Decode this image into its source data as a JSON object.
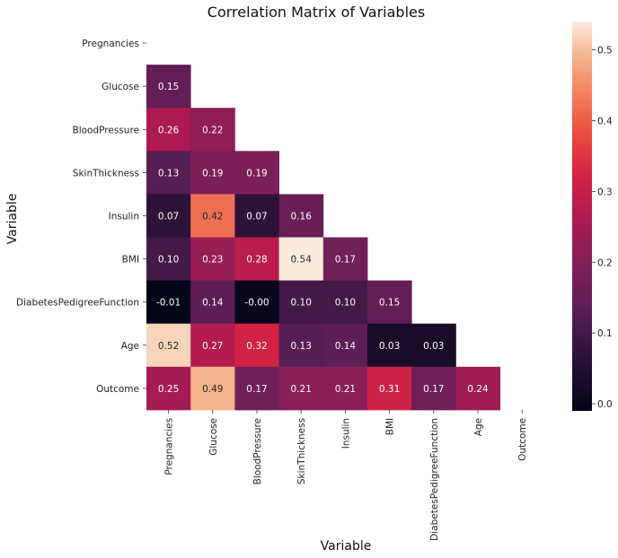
{
  "chart_data": {
    "type": "heatmap",
    "title": "Correlation Matrix of Variables",
    "xlabel": "Variable",
    "ylabel": "Variable",
    "variables": [
      "Pregnancies",
      "Glucose",
      "BloodPressure",
      "SkinThickness",
      "Insulin",
      "BMI",
      "DiabetesPedigreeFunction",
      "Age",
      "Outcome"
    ],
    "mask": "upper-triangle-including-diagonal",
    "values": [
      [
        null,
        null,
        null,
        null,
        null,
        null,
        null,
        null,
        null
      ],
      [
        0.15,
        null,
        null,
        null,
        null,
        null,
        null,
        null,
        null
      ],
      [
        0.26,
        0.22,
        null,
        null,
        null,
        null,
        null,
        null,
        null
      ],
      [
        0.13,
        0.19,
        0.19,
        null,
        null,
        null,
        null,
        null,
        null
      ],
      [
        0.07,
        0.42,
        0.07,
        0.16,
        null,
        null,
        null,
        null,
        null
      ],
      [
        0.1,
        0.23,
        0.28,
        0.54,
        0.17,
        null,
        null,
        null,
        null
      ],
      [
        -0.01,
        0.14,
        -0.0,
        0.1,
        0.1,
        0.15,
        null,
        null,
        null
      ],
      [
        0.52,
        0.27,
        0.32,
        0.13,
        0.14,
        0.03,
        0.03,
        null,
        null
      ],
      [
        0.25,
        0.49,
        0.17,
        0.21,
        0.21,
        0.31,
        0.17,
        0.24,
        null
      ]
    ],
    "labels": [
      [
        null,
        null,
        null,
        null,
        null,
        null,
        null,
        null,
        null
      ],
      [
        "0.15",
        null,
        null,
        null,
        null,
        null,
        null,
        null,
        null
      ],
      [
        "0.26",
        "0.22",
        null,
        null,
        null,
        null,
        null,
        null,
        null
      ],
      [
        "0.13",
        "0.19",
        "0.19",
        null,
        null,
        null,
        null,
        null,
        null
      ],
      [
        "0.07",
        "0.42",
        "0.07",
        "0.16",
        null,
        null,
        null,
        null,
        null
      ],
      [
        "0.10",
        "0.23",
        "0.28",
        "0.54",
        "0.17",
        null,
        null,
        null,
        null
      ],
      [
        "-0.01",
        "0.14",
        "-0.00",
        "0.10",
        "0.10",
        "0.15",
        null,
        null,
        null
      ],
      [
        "0.52",
        "0.27",
        "0.32",
        "0.13",
        "0.14",
        "0.03",
        "0.03",
        null,
        null
      ],
      [
        "0.25",
        "0.49",
        "0.17",
        "0.21",
        "0.21",
        "0.31",
        "0.17",
        "0.24",
        null
      ]
    ],
    "colorbar": {
      "range": [
        -0.01,
        0.54
      ],
      "ticks": [
        0.0,
        0.1,
        0.2,
        0.3,
        0.4,
        0.5
      ],
      "tick_labels": [
        "0.0",
        "0.1",
        "0.2",
        "0.3",
        "0.4",
        "0.5"
      ],
      "colormap": "rocket"
    },
    "grid": false
  }
}
